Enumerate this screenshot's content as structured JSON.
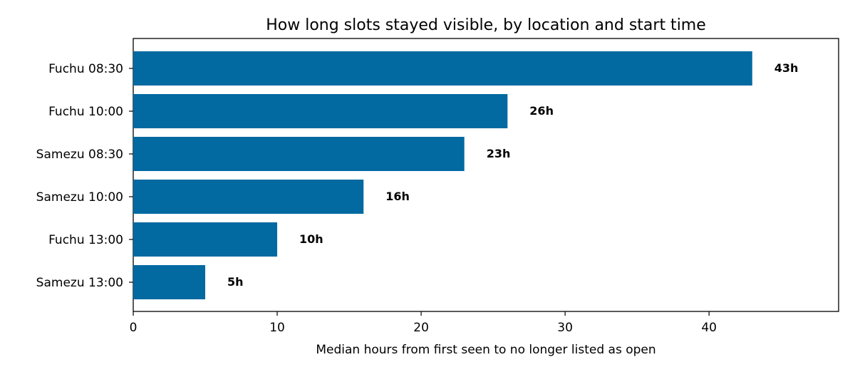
{
  "chart_data": {
    "type": "bar",
    "orientation": "horizontal",
    "title": "How long slots stayed visible, by location and start time",
    "xlabel": "Median hours from first seen to no longer listed as open",
    "ylabel": "",
    "categories": [
      "Fuchu 08:30",
      "Fuchu 10:00",
      "Samezu 08:30",
      "Samezu 10:00",
      "Fuchu 13:00",
      "Samezu 13:00"
    ],
    "values": [
      43,
      26,
      23,
      16,
      10,
      5
    ],
    "value_labels": [
      "43h",
      "26h",
      "23h",
      "16h",
      "10h",
      "5h"
    ],
    "xlim": [
      0,
      49
    ],
    "xticks": [
      0,
      10,
      20,
      30,
      40
    ],
    "xtick_labels": [
      "0",
      "10",
      "20",
      "30",
      "40"
    ],
    "grid": false,
    "legend": "none",
    "bar_color": "#0369a1"
  }
}
